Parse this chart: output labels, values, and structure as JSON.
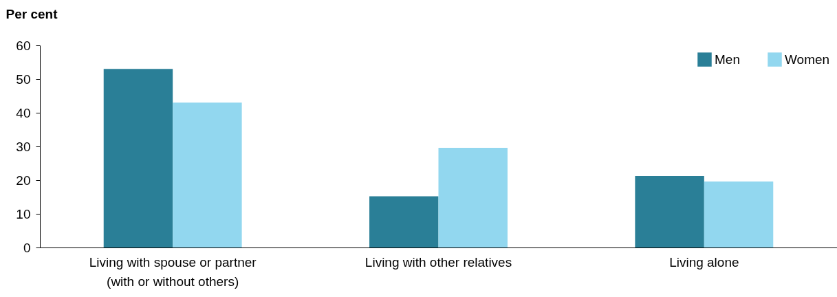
{
  "chart_data": {
    "type": "bar",
    "ylabel": "Per cent",
    "categories": [
      "Living with spouse or partner\n(with or without others)",
      "Living with other relatives",
      "Living alone"
    ],
    "series": [
      {
        "name": "Men",
        "color": "#2a7f97",
        "values": [
          53,
          15.2,
          21.2
        ]
      },
      {
        "name": "Women",
        "color": "#92d7ef",
        "values": [
          43,
          29.6,
          19.6
        ]
      }
    ],
    "ylim": [
      0,
      60
    ],
    "yticks": [
      0,
      10,
      20,
      30,
      40,
      50,
      60
    ],
    "grid": false,
    "legend": "top right"
  }
}
